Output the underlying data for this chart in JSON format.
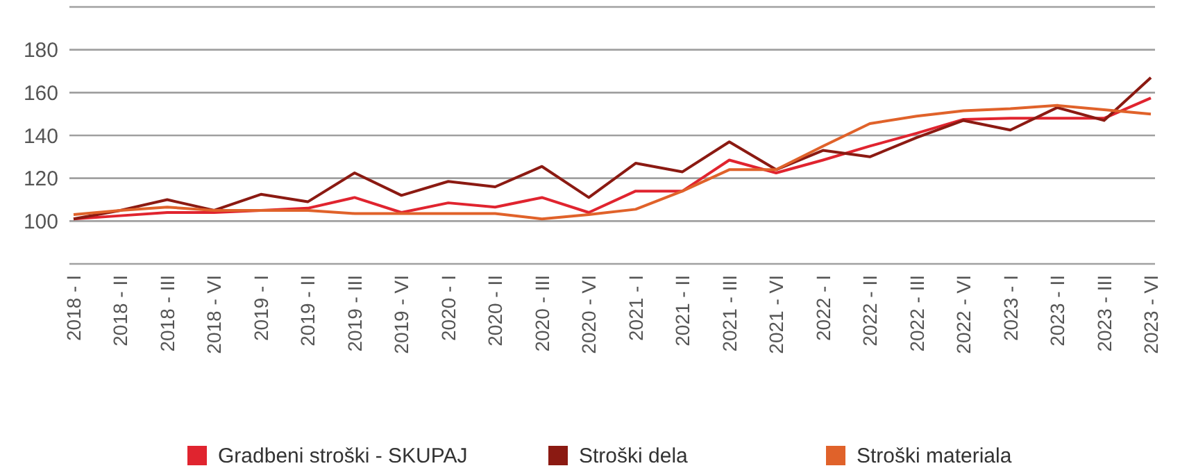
{
  "chart_data": {
    "type": "line",
    "categories": [
      "2018 - I",
      "2018 - II",
      "2018 - III",
      "2018 - VI",
      "2019 - I",
      "2019 - II",
      "2019 - III",
      "2019 - VI",
      "2020 - I",
      "2020 - II",
      "2020 - III",
      "2020 - VI",
      "2021 - I",
      "2021 - II",
      "2021 - III",
      "2021 - VI",
      "2022 - I",
      "2022 - II",
      "2022 - III",
      "2022 - VI",
      "2023 - I",
      "2023 - II",
      "2023 - III",
      "2023 - VI"
    ],
    "series": [
      {
        "name": "Gradbeni stroški - SKUPAJ",
        "color": "#e0242f",
        "values": [
          101,
          102.5,
          104,
          104,
          105,
          106,
          111,
          104,
          108.5,
          106.5,
          111,
          104,
          114,
          114,
          128.5,
          122.5,
          128.5,
          135,
          141,
          147.5,
          148,
          148,
          148,
          157.5
        ]
      },
      {
        "name": "Stroški dela",
        "color": "#8b1a12",
        "values": [
          101,
          105,
          110,
          105,
          112.5,
          109,
          122.5,
          112,
          118.5,
          116,
          125.5,
          111,
          127,
          123,
          137,
          124,
          133,
          130,
          139,
          147,
          142.5,
          153,
          147,
          167
        ]
      },
      {
        "name": "Stroški materiala",
        "color": "#e0622a",
        "values": [
          103,
          105,
          106.5,
          105,
          105,
          105,
          103.5,
          103.5,
          103.5,
          103.5,
          101,
          103,
          105.5,
          114,
          124,
          124,
          135,
          145.5,
          149,
          151.5,
          152.5,
          154,
          152,
          150
        ]
      }
    ],
    "ylim": [
      80,
      200
    ],
    "yticks": [
      {
        "value": 80,
        "label": null
      },
      100,
      120,
      140,
      160,
      180,
      {
        "value": 200,
        "label": null
      }
    ],
    "grid": "y",
    "legend": "bottom",
    "marker": "none",
    "line_style": "solid"
  }
}
